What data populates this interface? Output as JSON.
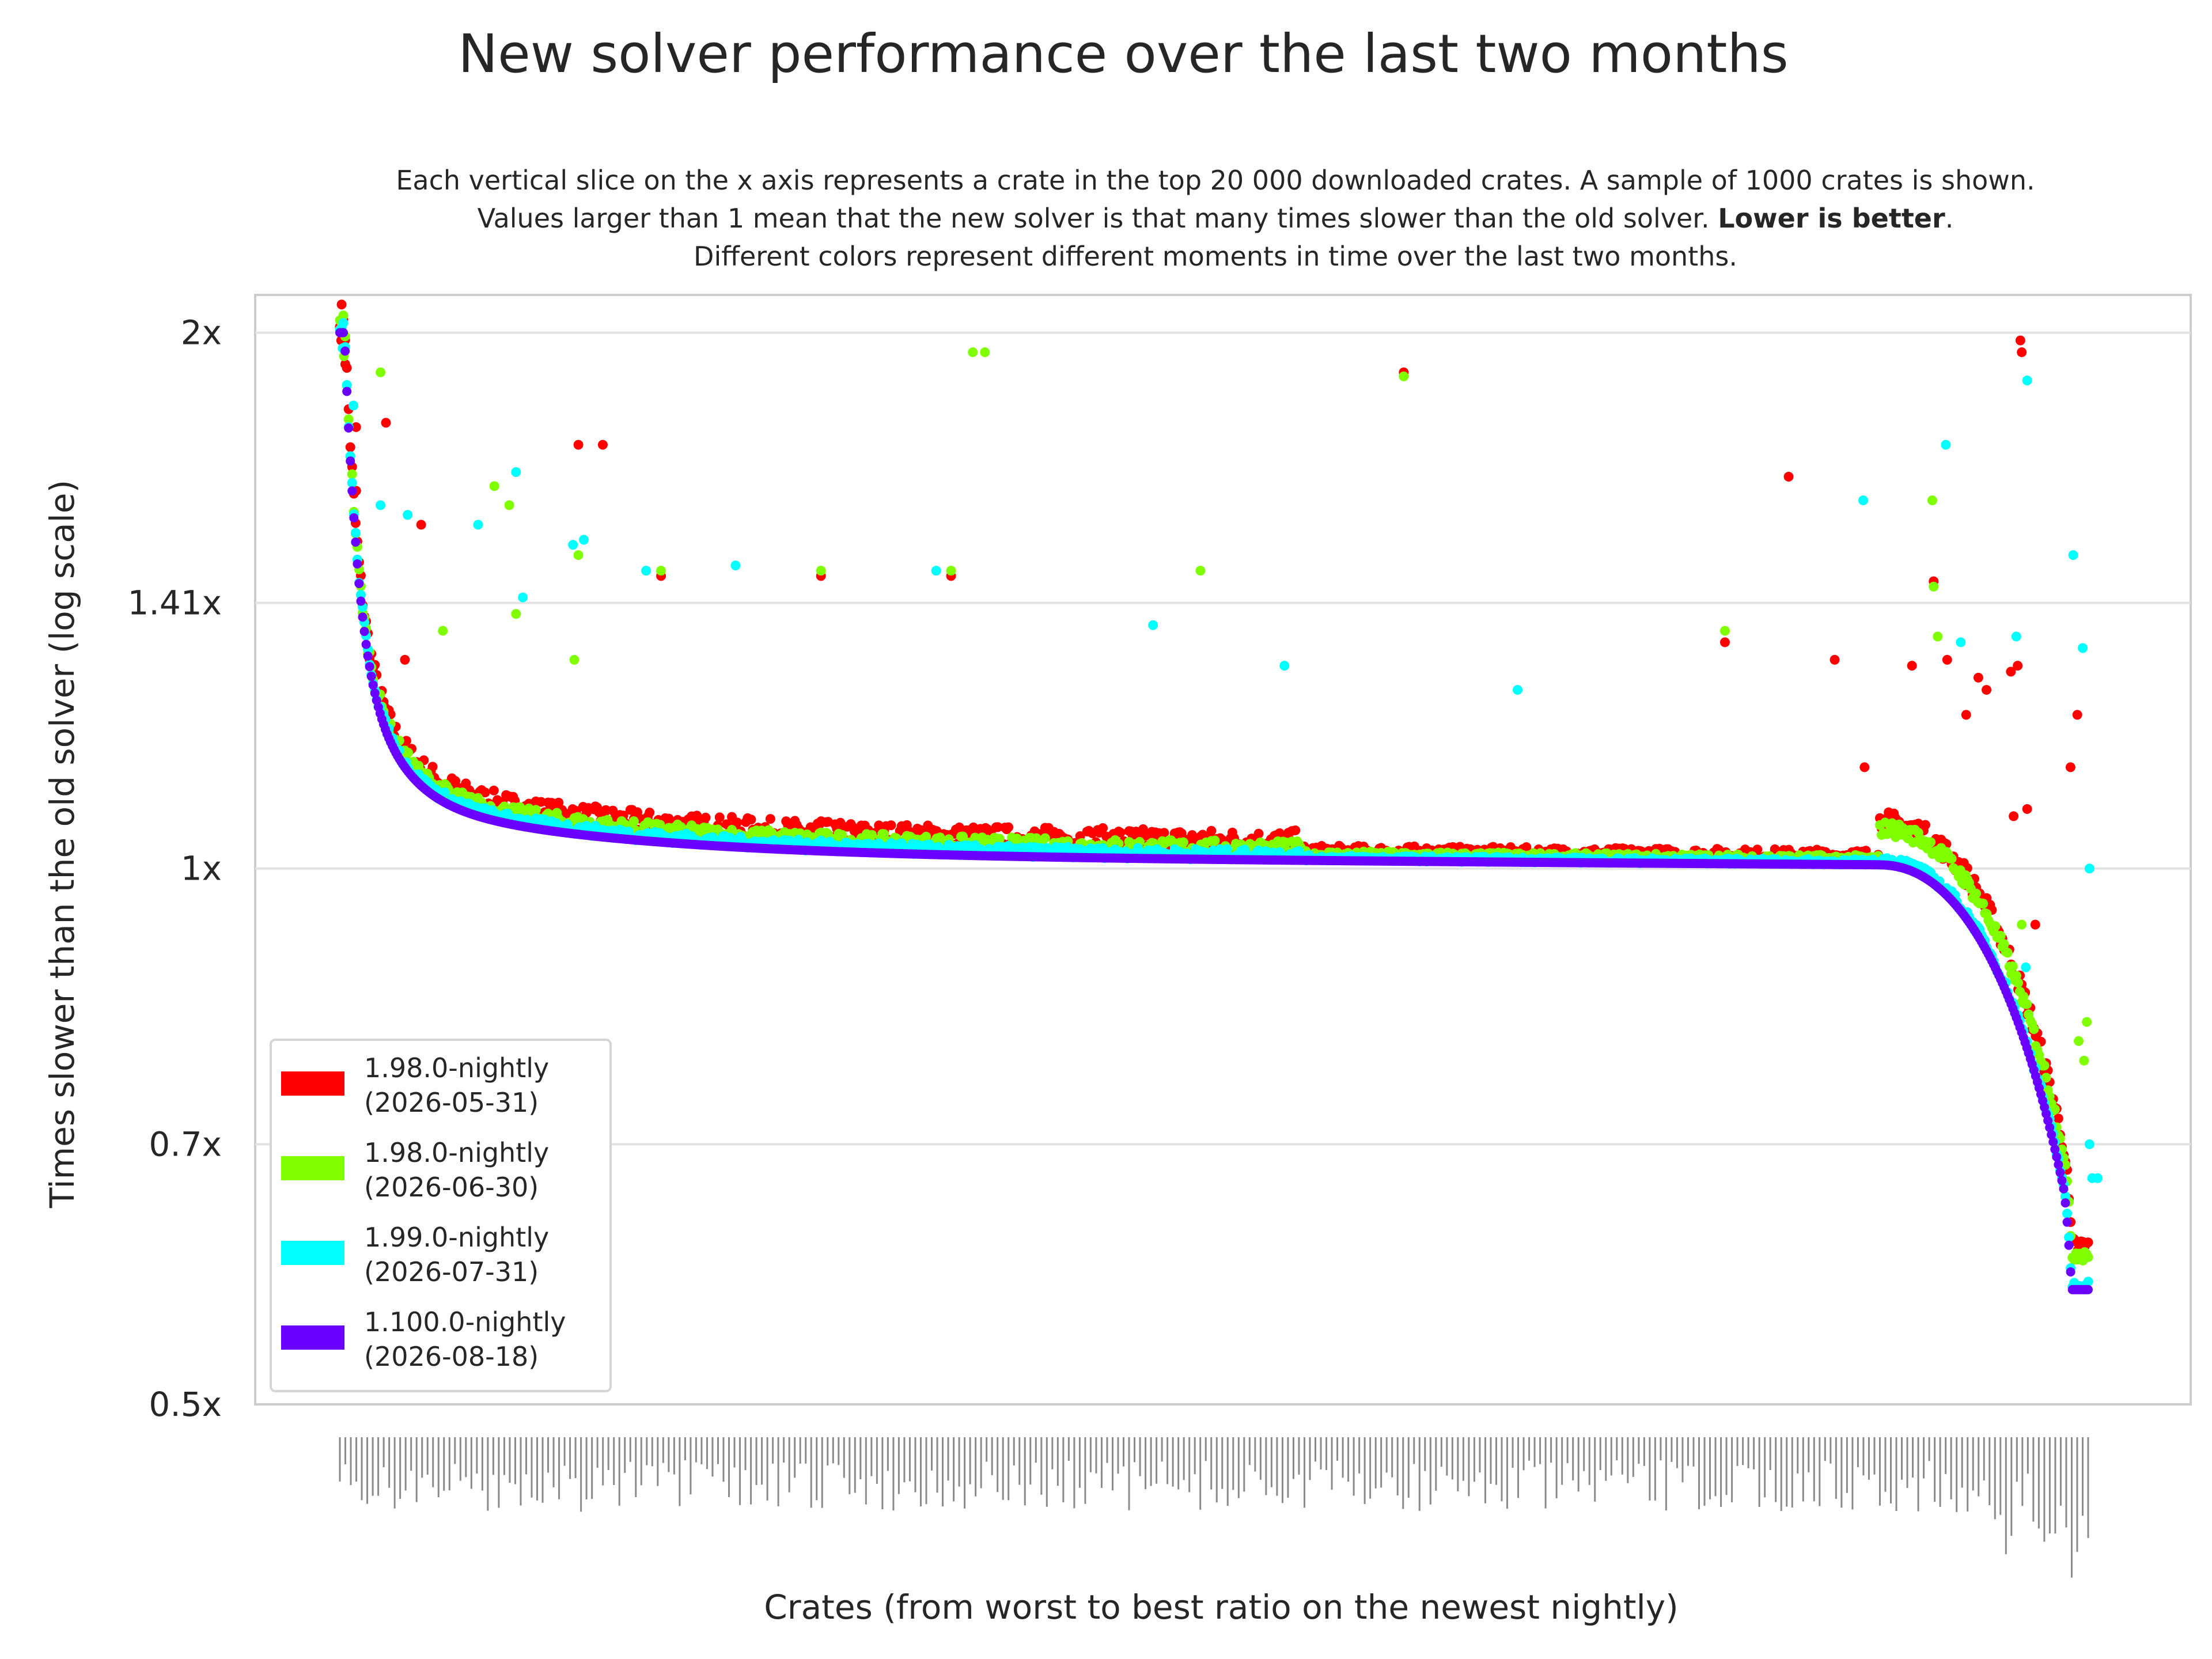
{
  "title": "New solver performance over the last two months",
  "subtitle": {
    "line1": "Each vertical slice on the x axis represents a crate in the top 20 000 downloaded crates. A sample of 1000 crates is shown.",
    "line2_prefix": "Values larger than 1 mean that the new solver is that many times slower than the old solver. ",
    "line2_bold": "Lower is better",
    "line2_suffix": ".",
    "line3": "Different colors represent different moments in time over the last two months."
  },
  "chart_data": {
    "type": "scatter",
    "title": "New solver performance over the last two months",
    "xlabel": "Crates (from worst to best ratio on the newest nightly)",
    "ylabel": "Times slower than the old solver (log scale)",
    "y_scale": "log2",
    "ylim": [
      0.5,
      2.1
    ],
    "yticks": [
      {
        "value": 2.0,
        "label": "2x"
      },
      {
        "value": 1.41,
        "label": "1.41x"
      },
      {
        "value": 1.0,
        "label": "1x"
      },
      {
        "value": 0.7,
        "label": "0.7x"
      },
      {
        "value": 0.5,
        "label": "0.5x"
      }
    ],
    "x_count": 1000,
    "grid": "horizontal",
    "legend_position": "bottom-left",
    "series": [
      {
        "name": "1.98.0-nightly\n(2026-05-31)",
        "color": "#ff0000",
        "points": [
          [
            1,
            1.98
          ],
          [
            4,
            1.92
          ],
          [
            12,
            1.77
          ],
          [
            12,
            1.63
          ],
          [
            34,
            1.78
          ],
          [
            60,
            1.56
          ],
          [
            48,
            1.31
          ],
          [
            176,
            1.73
          ],
          [
            194,
            1.73
          ],
          [
            237,
            1.46
          ],
          [
            355,
            1.46
          ],
          [
            451,
            1.46
          ],
          [
            785,
            1.9
          ],
          [
            1022,
            1.34
          ],
          [
            1069,
            1.66
          ],
          [
            1125,
            1.14
          ],
          [
            1176,
            1.45
          ],
          [
            1238,
            1.3
          ],
          [
            1241,
            1.95
          ],
          [
            1240,
            1.98
          ],
          [
            1235,
            1.07
          ],
          [
            1215,
            1.26
          ],
          [
            1233,
            1.29
          ],
          [
            1251,
            0.93
          ],
          [
            1282,
            1.22
          ],
          [
            1160,
            1.3
          ],
          [
            1103,
            1.31
          ],
          [
            1186,
            1.31
          ],
          [
            1209,
            1.28
          ],
          [
            1200,
            1.22
          ],
          [
            1245,
            1.08
          ],
          [
            1277,
            1.14
          ]
        ]
      },
      {
        "name": "1.98.0-nightly\n(2026-06-30)",
        "color": "#80ff00",
        "points": [
          [
            3,
            1.94
          ],
          [
            30,
            1.9
          ],
          [
            76,
            1.36
          ],
          [
            173,
            1.31
          ],
          [
            114,
            1.64
          ],
          [
            125,
            1.6
          ],
          [
            130,
            1.39
          ],
          [
            176,
            1.5
          ],
          [
            237,
            1.47
          ],
          [
            355,
            1.47
          ],
          [
            451,
            1.47
          ],
          [
            476,
            1.95
          ],
          [
            467,
            1.95
          ],
          [
            635,
            1.47
          ],
          [
            785,
            1.89
          ],
          [
            1175,
            1.61
          ],
          [
            1022,
            1.36
          ],
          [
            1176,
            1.44
          ],
          [
            1179,
            1.35
          ],
          [
            1241,
            0.93
          ],
          [
            1289,
            0.82
          ],
          [
            1283,
            0.8
          ],
          [
            1287,
            0.78
          ]
        ]
      },
      {
        "name": "1.99.0-nightly\n(2026-07-31)",
        "color": "#00ffff",
        "points": [
          [
            2,
            1.96
          ],
          [
            10,
            1.82
          ],
          [
            30,
            1.6
          ],
          [
            50,
            1.58
          ],
          [
            102,
            1.56
          ],
          [
            130,
            1.67
          ],
          [
            135,
            1.42
          ],
          [
            172,
            1.52
          ],
          [
            180,
            1.53
          ],
          [
            226,
            1.47
          ],
          [
            292,
            1.48
          ],
          [
            440,
            1.47
          ],
          [
            600,
            1.37
          ],
          [
            697,
            1.3
          ],
          [
            869,
            1.26
          ],
          [
            1124,
            1.61
          ],
          [
            1185,
            1.73
          ],
          [
            1196,
            1.34
          ],
          [
            1244,
            0.88
          ],
          [
            1245,
            1.88
          ],
          [
            1237,
            1.35
          ],
          [
            1279,
            1.5
          ],
          [
            1286,
            1.33
          ],
          [
            1291,
            0.7
          ],
          [
            1293,
            0.67
          ],
          [
            1297,
            0.67
          ],
          [
            1291,
            1.0
          ]
        ]
      },
      {
        "name": "1.100.0-nightly\n(2026-08-18)",
        "color": "#6a00ff",
        "points": []
      }
    ]
  }
}
